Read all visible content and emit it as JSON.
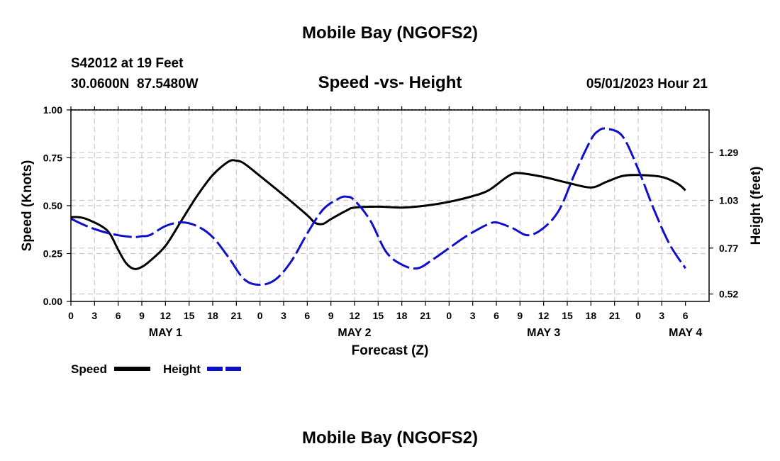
{
  "page": {
    "title_top": "Mobile Bay (NGOFS2)",
    "title_bottom": "Mobile Bay (NGOFS2)"
  },
  "station": {
    "name": "S42012 at 19 Feet",
    "coords": "30.0600N  87.5480W",
    "datetime": "05/01/2023 Hour 21"
  },
  "chart_data": {
    "type": "line",
    "title": "Speed -vs- Height",
    "xlabel": "Forecast (Z)",
    "ylabel_left": "Speed (Knots)",
    "ylabel_right": "Height (feet)",
    "x_range_hours": [
      0,
      81
    ],
    "ylim_left": [
      0,
      1
    ],
    "ylim_right": [
      0.4795,
      1.5225
    ],
    "grid": true,
    "left_ticks": [
      {
        "v": 0.0,
        "label": "0.00"
      },
      {
        "v": 0.25,
        "label": "0.25"
      },
      {
        "v": 0.5,
        "label": "0.50"
      },
      {
        "v": 0.75,
        "label": "0.75"
      },
      {
        "v": 1.0,
        "label": "1.00"
      }
    ],
    "right_ticks": [
      {
        "v": 0.52,
        "label": "0.52"
      },
      {
        "v": 0.77,
        "label": "0.77"
      },
      {
        "v": 1.03,
        "label": "1.03"
      },
      {
        "v": 1.29,
        "label": "1.29"
      }
    ],
    "x_ticks": [
      {
        "h": 0,
        "label": "0"
      },
      {
        "h": 3,
        "label": "3"
      },
      {
        "h": 6,
        "label": "6"
      },
      {
        "h": 9,
        "label": "9"
      },
      {
        "h": 12,
        "label": "12"
      },
      {
        "h": 15,
        "label": "15"
      },
      {
        "h": 18,
        "label": "18"
      },
      {
        "h": 21,
        "label": "21"
      },
      {
        "h": 24,
        "label": "0"
      },
      {
        "h": 27,
        "label": "3"
      },
      {
        "h": 30,
        "label": "6"
      },
      {
        "h": 33,
        "label": "9"
      },
      {
        "h": 36,
        "label": "12"
      },
      {
        "h": 39,
        "label": "15"
      },
      {
        "h": 42,
        "label": "18"
      },
      {
        "h": 45,
        "label": "21"
      },
      {
        "h": 48,
        "label": "0"
      },
      {
        "h": 51,
        "label": "3"
      },
      {
        "h": 54,
        "label": "6"
      },
      {
        "h": 57,
        "label": "9"
      },
      {
        "h": 60,
        "label": "12"
      },
      {
        "h": 63,
        "label": "15"
      },
      {
        "h": 66,
        "label": "18"
      },
      {
        "h": 69,
        "label": "21"
      },
      {
        "h": 72,
        "label": "0"
      },
      {
        "h": 75,
        "label": "3"
      },
      {
        "h": 78,
        "label": "6"
      }
    ],
    "day_labels": [
      {
        "h": 12,
        "label": "MAY 1"
      },
      {
        "h": 36,
        "label": "MAY 2"
      },
      {
        "h": 60,
        "label": "MAY 3"
      },
      {
        "h": 78,
        "label": "MAY 4"
      }
    ],
    "series": [
      {
        "name": "Speed",
        "axis": "left",
        "color": "#000000",
        "style": "solid",
        "x": [
          0,
          1,
          2,
          4,
          5,
          6,
          7,
          8,
          9,
          10,
          12,
          14,
          16,
          18,
          20,
          21,
          22,
          24,
          27,
          30,
          31,
          32,
          33,
          35,
          36,
          39,
          42,
          45,
          48,
          51,
          53,
          55,
          56,
          57,
          60,
          63,
          66,
          68,
          70,
          72,
          75,
          77,
          78
        ],
        "values": [
          0.44,
          0.44,
          0.43,
          0.39,
          0.35,
          0.27,
          0.2,
          0.17,
          0.18,
          0.21,
          0.29,
          0.42,
          0.55,
          0.66,
          0.73,
          0.735,
          0.72,
          0.655,
          0.555,
          0.45,
          0.41,
          0.405,
          0.43,
          0.475,
          0.49,
          0.495,
          0.49,
          0.5,
          0.52,
          0.55,
          0.58,
          0.64,
          0.665,
          0.67,
          0.65,
          0.62,
          0.595,
          0.625,
          0.655,
          0.66,
          0.65,
          0.615,
          0.58
        ]
      },
      {
        "name": "Height",
        "axis": "right",
        "color": "#1010cc",
        "style": "dashed",
        "x": [
          0,
          2,
          4,
          6,
          8,
          9,
          10,
          12,
          14,
          16,
          18,
          20,
          22,
          24,
          26,
          28,
          30,
          32,
          34,
          35,
          36,
          38,
          40,
          42,
          44,
          46,
          48,
          50,
          52,
          53,
          54,
          56,
          58,
          60,
          62,
          64,
          66,
          67,
          68,
          70,
          72,
          74,
          76,
          78
        ],
        "values": [
          0.93,
          0.89,
          0.86,
          0.84,
          0.83,
          0.835,
          0.84,
          0.89,
          0.91,
          0.89,
          0.83,
          0.72,
          0.6,
          0.57,
          0.6,
          0.7,
          0.85,
          0.98,
          1.04,
          1.05,
          1.03,
          0.92,
          0.75,
          0.68,
          0.66,
          0.71,
          0.77,
          0.83,
          0.88,
          0.9,
          0.91,
          0.88,
          0.84,
          0.88,
          0.98,
          1.18,
          1.36,
          1.41,
          1.42,
          1.38,
          1.2,
          0.98,
          0.79,
          0.66
        ]
      }
    ]
  },
  "legend": {
    "speed_label": "Speed",
    "height_label": "Height"
  }
}
